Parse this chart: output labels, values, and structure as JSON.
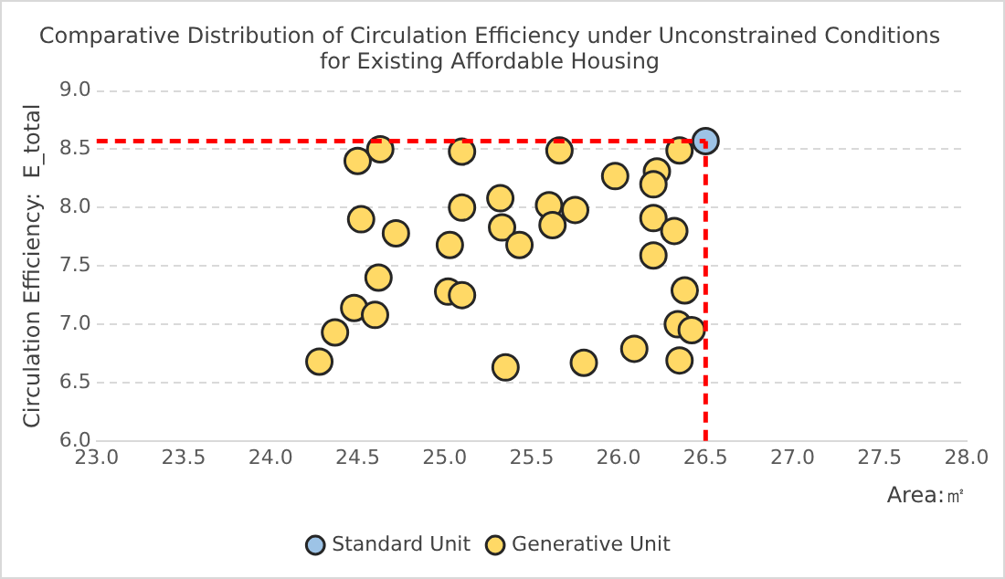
{
  "chart_data": {
    "type": "scatter",
    "title": "Comparative Distribution of Circulation Efficiency under Unconstrained Conditions for Existing Affordable Housing",
    "xlabel": "Area:㎡",
    "ylabel": "Circulation Efficiency:  E_total",
    "xlim": [
      23.0,
      28.0
    ],
    "xticks": [
      {
        "value": 23,
        "label": "23.0"
      },
      23.5,
      {
        "value": 24,
        "label": "24.0"
      },
      24.5,
      {
        "value": 25,
        "label": "25.0"
      },
      25.5,
      {
        "value": 26,
        "label": "26.0"
      },
      26.5,
      {
        "value": 27,
        "label": "27.0"
      },
      27.5,
      {
        "value": 28,
        "label": "28.0"
      }
    ],
    "ylim": [
      6.0,
      9.0
    ],
    "yticks": [
      {
        "value": 6,
        "label": "6.0"
      },
      6.5,
      {
        "value": 7,
        "label": "7.0"
      },
      7.5,
      {
        "value": 8,
        "label": "8.0"
      },
      8.5,
      {
        "value": 9,
        "label": "9.0"
      }
    ],
    "grid": "y",
    "legend": "bottom",
    "marker": "circle",
    "ref_lines": [
      {
        "axis": "y",
        "value": 8.57,
        "color": "#ff0000",
        "line_style": "dashed"
      },
      {
        "axis": "x",
        "value": 26.5,
        "color": "#ff0000",
        "line_style": "dashed"
      }
    ],
    "series": [
      {
        "name": "Standard Unit",
        "color": "#9dc3e6",
        "x": [
          26.5
        ],
        "values": [
          8.57
        ]
      },
      {
        "name": "Generative Unit",
        "color": "#ffd966",
        "x": [
          24.28,
          24.37,
          24.48,
          24.6,
          24.62,
          24.5,
          24.63,
          24.52,
          24.72,
          25.02,
          25.1,
          25.03,
          25.1,
          25.1,
          25.32,
          25.33,
          25.43,
          25.35,
          25.6,
          25.62,
          25.66,
          25.75,
          25.8,
          25.98,
          26.09,
          26.22,
          26.2,
          26.2,
          26.32,
          26.2,
          26.38,
          26.34,
          26.42,
          26.35,
          26.35
        ],
        "values": [
          6.68,
          6.93,
          7.14,
          7.08,
          7.4,
          8.4,
          8.5,
          7.9,
          7.78,
          7.28,
          7.25,
          7.68,
          8.0,
          8.48,
          8.08,
          7.83,
          7.68,
          6.63,
          8.02,
          7.85,
          8.49,
          7.98,
          6.67,
          8.27,
          6.79,
          8.31,
          8.2,
          7.91,
          7.8,
          7.59,
          7.29,
          7.0,
          6.95,
          6.69,
          8.49
        ]
      }
    ]
  }
}
